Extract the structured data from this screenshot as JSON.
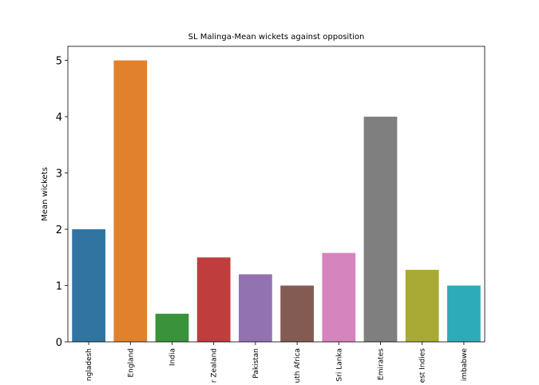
{
  "chart_data": {
    "type": "bar",
    "title": "SL Malinga-Mean wickets against opposition",
    "y_label": "Mean wickets",
    "categories": [
      "ngladesh",
      "England",
      "India",
      "r Zealand",
      "Pakistan",
      "uth Africa",
      "Sri Lanka",
      "Emirates",
      "est Indies",
      "imbabwe"
    ],
    "values": [
      2,
      5,
      0.5,
      1.5,
      1.2,
      1,
      1.58,
      4,
      1.28,
      1
    ],
    "colors": [
      "#3274a1",
      "#e1812c",
      "#3a923a",
      "#c03d3e",
      "#9372b2",
      "#845b53",
      "#d684bd",
      "#7f7f7f",
      "#a9aa35",
      "#2eabb8"
    ],
    "ylim": [
      0,
      5.25
    ],
    "yticks": [
      0,
      1,
      2,
      3,
      4,
      5
    ]
  }
}
